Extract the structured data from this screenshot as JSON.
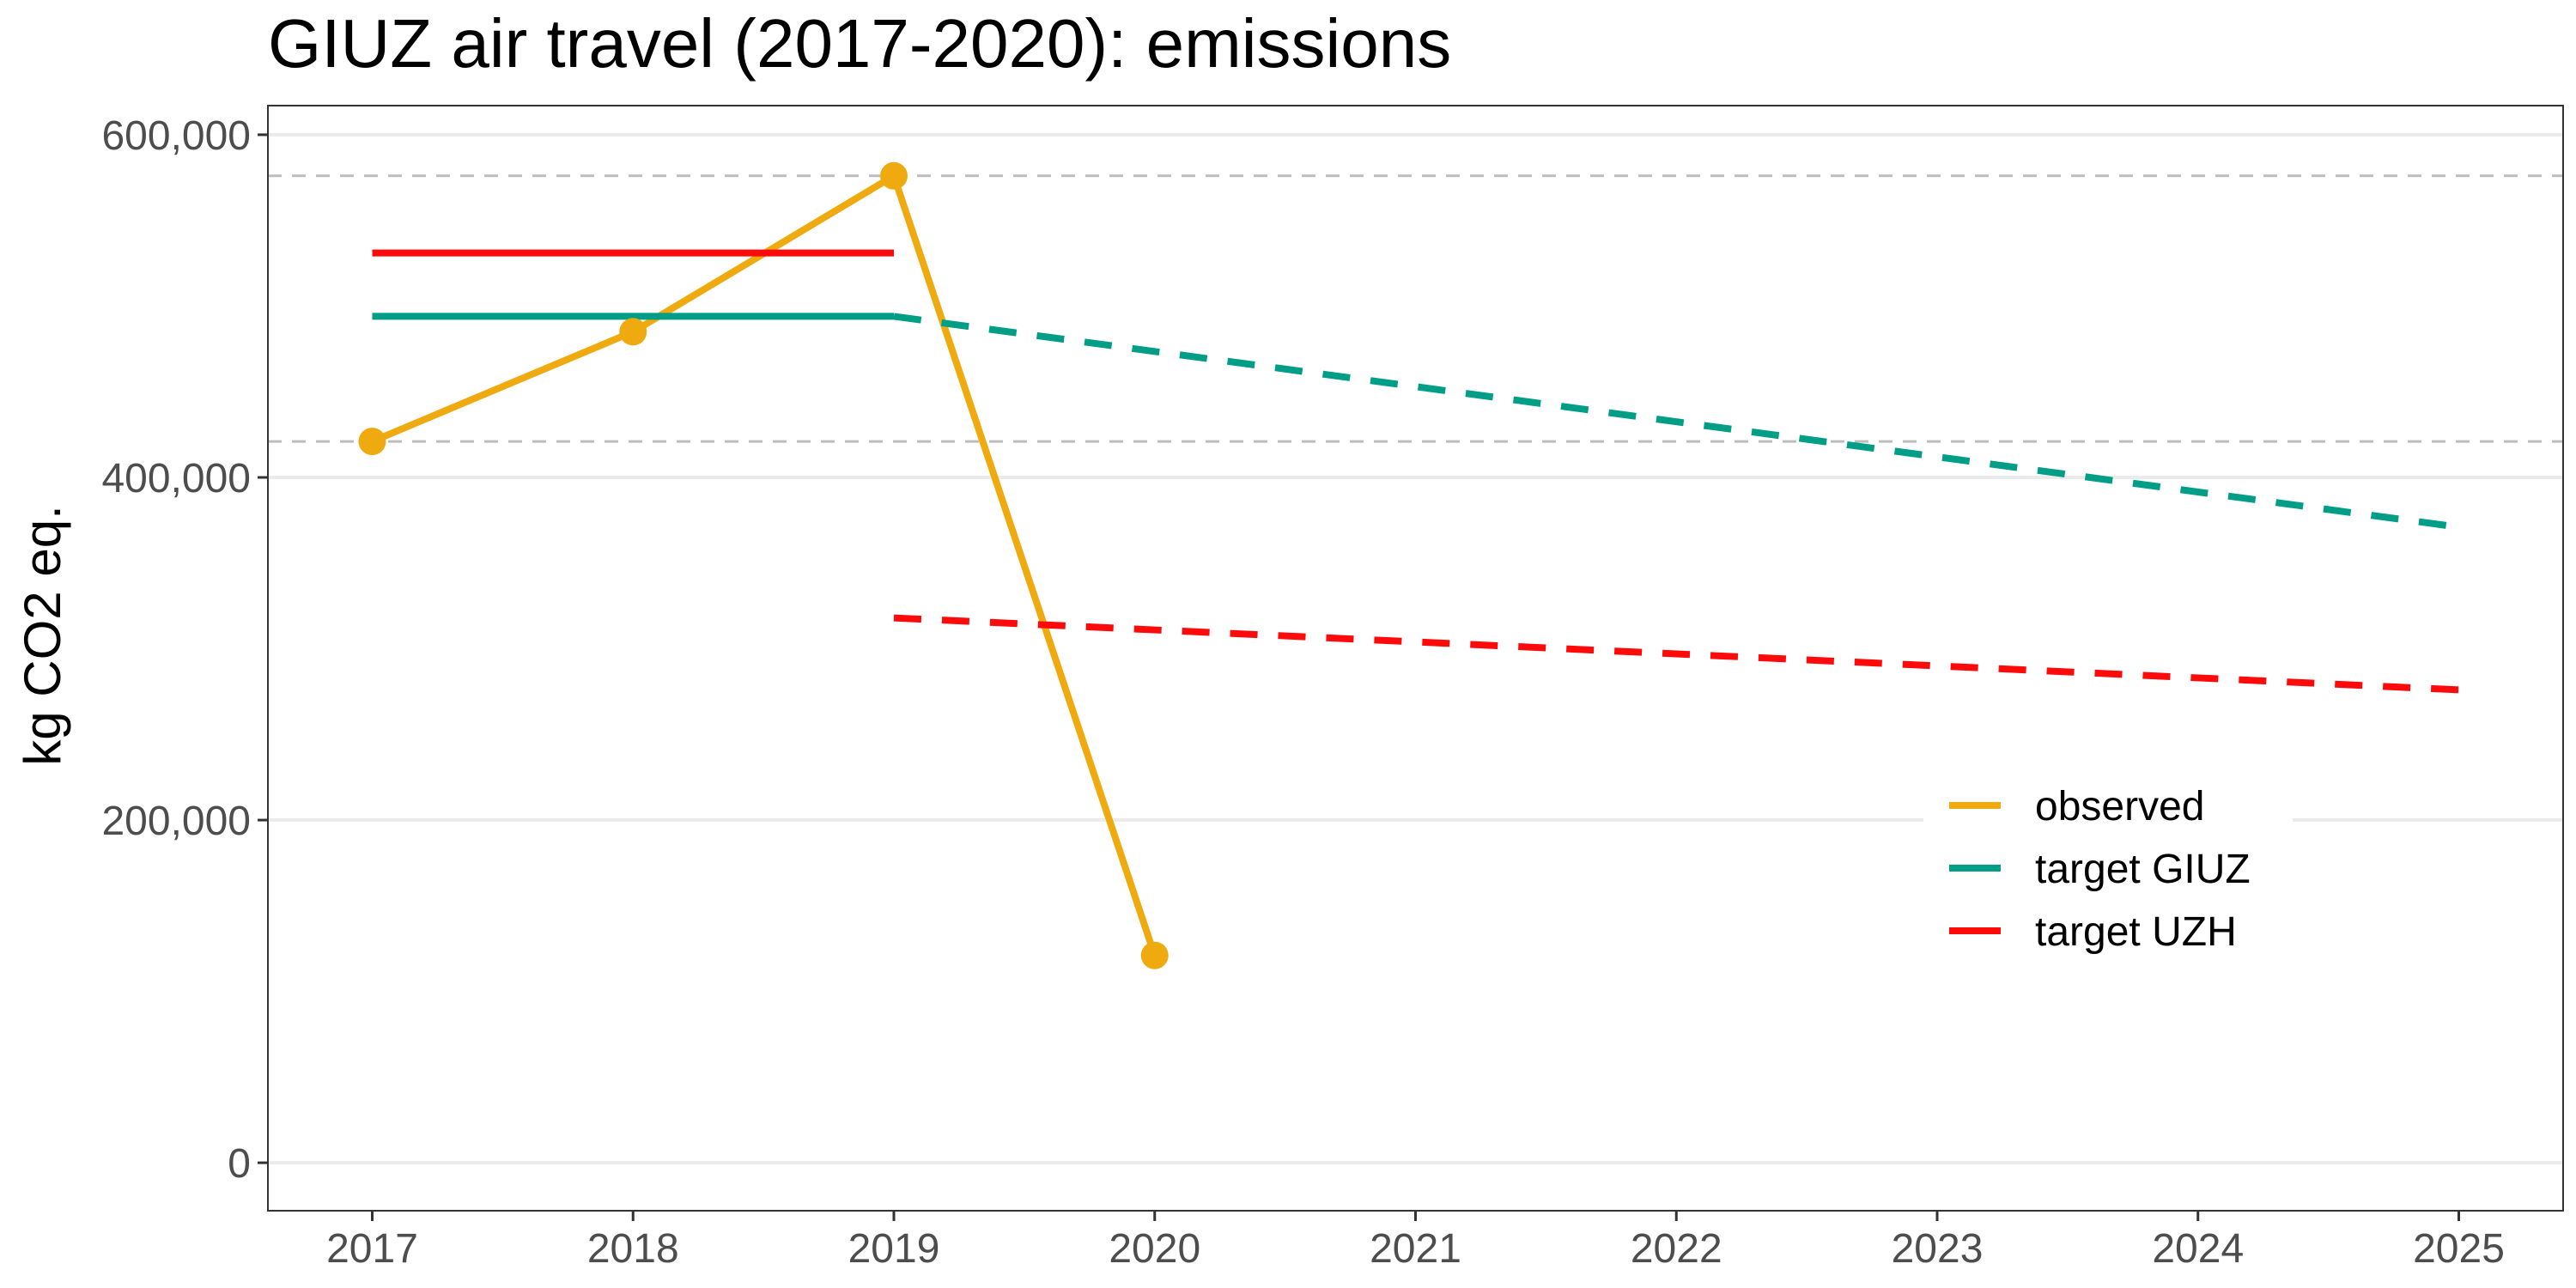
{
  "chart_data": {
    "type": "line",
    "title": "GIUZ air travel (2017-2020): emissions",
    "xlabel": "",
    "ylabel": "kg CO2 eq.",
    "x_ticks": [
      "2017",
      "2018",
      "2019",
      "2020",
      "2021",
      "2022",
      "2023",
      "2024",
      "2025"
    ],
    "y_ticks": [
      "0",
      "200,000",
      "400,000",
      "600,000"
    ],
    "xlim": [
      2016.6,
      2025.4
    ],
    "ylim": [
      -28000,
      617000
    ],
    "grid": true,
    "legend_position": "right",
    "reference_lines": [
      {
        "style": "dashed",
        "color": "#bdbdbd",
        "y": 421000
      },
      {
        "style": "dashed",
        "color": "#bdbdbd",
        "y": 576000
      }
    ],
    "series": [
      {
        "name": "observed",
        "color": "#EFAA0F",
        "markers": true,
        "segments": [
          {
            "style": "solid",
            "x": [
              2017,
              2018,
              2019,
              2020
            ],
            "y": [
              421000,
              485000,
              576000,
              121000
            ]
          }
        ]
      },
      {
        "name": "target GIUZ",
        "color": "#009E86",
        "markers": false,
        "segments": [
          {
            "style": "solid",
            "x": [
              2017,
              2019
            ],
            "y": [
              494000,
              494000
            ]
          },
          {
            "style": "dashed",
            "x": [
              2019,
              2025
            ],
            "y": [
              494000,
              371000
            ]
          }
        ]
      },
      {
        "name": "target UZH",
        "color": "#FF0A0A",
        "markers": false,
        "segments": [
          {
            "style": "solid",
            "x": [
              2017,
              2019
            ],
            "y": [
              531000,
              531000
            ]
          },
          {
            "style": "dashed",
            "x": [
              2019,
              2025
            ],
            "y": [
              318000,
              276000
            ]
          }
        ]
      }
    ]
  }
}
